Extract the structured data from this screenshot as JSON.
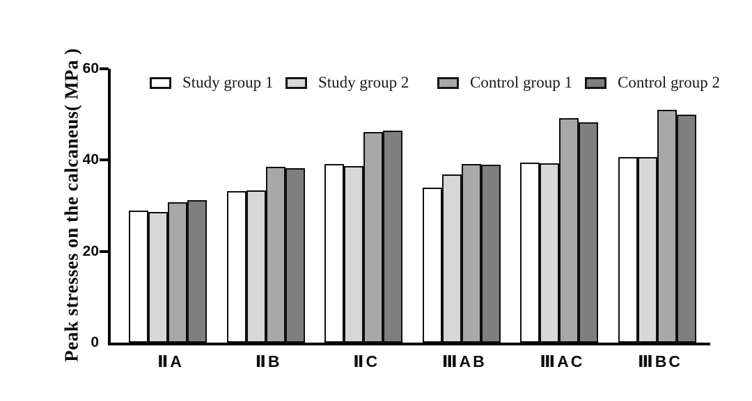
{
  "chart_data": {
    "type": "bar",
    "title": "",
    "xlabel": "",
    "ylabel": "Peak stresses on the calcaneus( MPa )",
    "ylim": [
      0,
      60
    ],
    "yticks": [
      "0",
      "20",
      "40",
      "60"
    ],
    "grid": false,
    "legend_position": "top",
    "categories": [
      "ⅡA",
      "ⅡB",
      "ⅡC",
      "ⅢAB",
      "ⅢAC",
      "ⅢBC"
    ],
    "series": [
      {
        "name": "Study group 1",
        "color": "#ffffff",
        "values": [
          28.9,
          33.2,
          39.2,
          33.9,
          39.4,
          40.6
        ]
      },
      {
        "name": "Study group 2",
        "color": "#d7d7d7",
        "values": [
          28.6,
          33.4,
          38.7,
          36.8,
          39.3,
          40.6
        ]
      },
      {
        "name": "Control group 1",
        "color": "#a8a8a8",
        "values": [
          30.7,
          38.6,
          46.2,
          39.1,
          49.2,
          51.0
        ]
      },
      {
        "name": "Control group 2",
        "color": "#7f7f7f",
        "values": [
          31.2,
          38.3,
          46.4,
          39.0,
          48.3,
          49.9
        ]
      }
    ],
    "bar_border_color": "#0e0e0e",
    "axis_color": "#000000"
  }
}
